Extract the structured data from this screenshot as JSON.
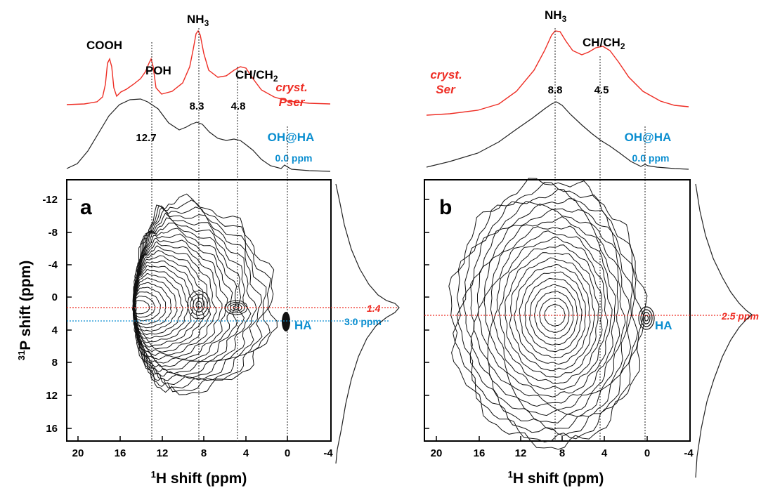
{
  "chart_data": [
    {
      "type": "contour",
      "panel_label": "a",
      "xlabel": "1H shift (ppm)",
      "ylabel": "31P shift (ppm)",
      "x_ticks": [
        "20",
        "16",
        "12",
        "8",
        "4",
        "0",
        "-4"
      ],
      "y_ticks": [
        "-12",
        "-8",
        "-4",
        "0",
        "4",
        "8",
        "12",
        "16"
      ],
      "xlim": [
        21,
        -4
      ],
      "ylim": [
        -14,
        18
      ],
      "crystal_trace_label_line1": "cryst.",
      "crystal_trace_label_line2": "Pser",
      "crystal_peaks": [
        {
          "label": "COOH",
          "ppm": 16.8
        },
        {
          "label": "POH",
          "ppm": 12.8
        },
        {
          "label": "NH3",
          "ppm": 8.3
        },
        {
          "label": "CH/CH2",
          "ppm": 4.2
        }
      ],
      "projection_shift_labels": [
        "12.7",
        "8.3",
        "4.8"
      ],
      "projection_shift_ppm": [
        12.7,
        8.3,
        4.8
      ],
      "oh_label": "OH@HA",
      "oh_shift_label": "0.0 ppm",
      "red_line_label": "1.4",
      "red_line_ppm": 1.4,
      "blue_line_label": "3.0 ppm",
      "blue_line_ppm": 3.0,
      "ha_label": "HA",
      "ha_position": {
        "h_ppm": 0.0,
        "p_ppm": 3.0
      },
      "contour_peaks": [
        {
          "h_ppm": 14.0,
          "p_ppm": 1.4
        },
        {
          "h_ppm": 8.3,
          "p_ppm": 1.0
        },
        {
          "h_ppm": 4.8,
          "p_ppm": 1.4
        }
      ]
    },
    {
      "type": "contour",
      "panel_label": "b",
      "xlabel": "1H shift (ppm)",
      "x_ticks": [
        "20",
        "16",
        "12",
        "8",
        "4",
        "0",
        "-4"
      ],
      "xlim": [
        21,
        -4
      ],
      "ylim": [
        -14,
        18
      ],
      "crystal_trace_label_line1": "cryst.",
      "crystal_trace_label_line2": "Ser",
      "crystal_peaks": [
        {
          "label": "NH3",
          "ppm": 8.6
        },
        {
          "label": "CH/CH2",
          "ppm": 3.6
        }
      ],
      "projection_shift_labels": [
        "8.8",
        "4.5"
      ],
      "projection_shift_ppm": [
        8.8,
        4.5
      ],
      "oh_label": "OH@HA",
      "oh_shift_label": "0.0 ppm",
      "red_line_label": "2.5 ppm",
      "red_line_ppm": 2.5,
      "ha_label": "HA",
      "ha_position": {
        "h_ppm": 0.0,
        "p_ppm": 3.0
      },
      "contour_peaks": [
        {
          "h_ppm": 8.8,
          "p_ppm": 2.5
        }
      ]
    }
  ],
  "colors": {
    "crystal_trace": "#ee2d24",
    "projection": "#222222",
    "contours": "#111111",
    "ha_blue": "#0a8ed0",
    "red_line": "#ee2d24"
  }
}
